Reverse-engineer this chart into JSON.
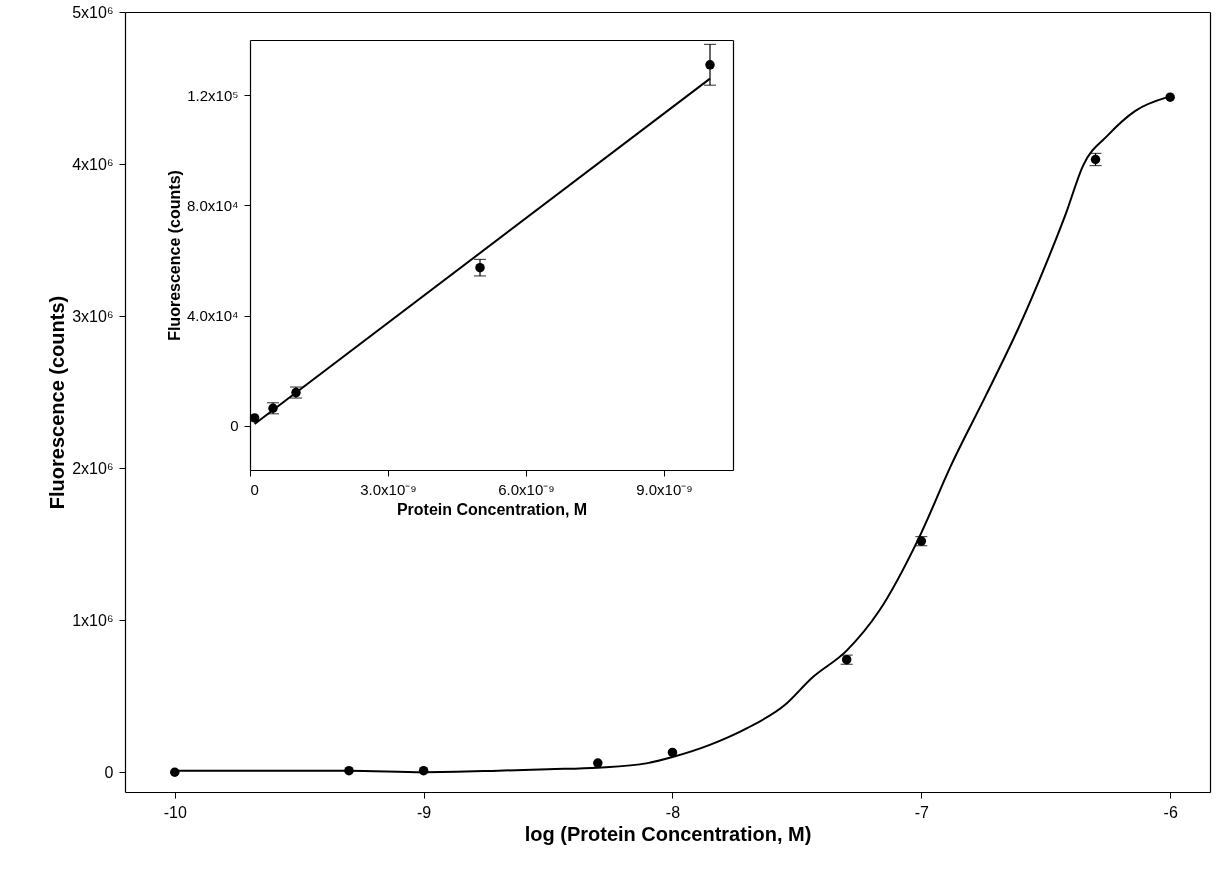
{
  "chart_data": [
    {
      "type": "scatter",
      "xlabel": "log (Protein Concentration, M)",
      "ylabel": "Fluorescence (counts)",
      "grid": false,
      "xlim": [
        -10.2,
        -5.84
      ],
      "xticks": [
        -10,
        -9,
        -8,
        -7,
        -6
      ],
      "ylim": [
        -130000,
        5000000
      ],
      "yticks": [
        0,
        {
          "value": 1000000,
          "label": "1x10⁶"
        },
        {
          "value": 2000000,
          "label": "2x10⁶"
        },
        {
          "value": 3000000,
          "label": "3x10⁶"
        },
        {
          "value": 4000000,
          "label": "4x10⁶"
        },
        {
          "value": 5000000,
          "label": "5x10⁶"
        }
      ],
      "series": [
        {
          "type": "line",
          "color": "#000000",
          "x": [
            -10,
            -9.5,
            -9.3,
            -9,
            -8.7,
            -8.5,
            -8.3,
            -8.1,
            -8,
            -7.85,
            -7.7,
            -7.55,
            -7.44,
            -7.3,
            -7.17,
            -7.01,
            -6.88,
            -6.74,
            -6.61,
            -6.52,
            -6.42,
            -6.35,
            -6.25,
            -6.14,
            -6.01
          ],
          "values": [
            10000,
            10000,
            10000,
            0,
            10000,
            20000,
            30000,
            60000,
            100000,
            180000,
            290000,
            440000,
            620000,
            800000,
            1060000,
            1540000,
            2020000,
            2480000,
            2920000,
            3260000,
            3670000,
            3990000,
            4190000,
            4350000,
            4440000
          ]
        },
        {
          "marker": "circle",
          "color": "#000000",
          "x": [
            -10,
            -9.3,
            -9,
            -8.3,
            -8,
            -7.3,
            -7,
            -6.3,
            -6
          ],
          "values": [
            0,
            10000,
            10000,
            60000,
            130000,
            740000,
            1520000,
            4030000,
            4440000
          ],
          "errors": [
            null,
            null,
            null,
            null,
            null,
            30000,
            30000,
            40000,
            null
          ]
        }
      ]
    },
    {
      "type": "scatter",
      "xlabel": "Protein Concentration, M",
      "ylabel": "Fluorescence (counts)",
      "grid": false,
      "xlim": [
        0,
        1.05e-08
      ],
      "xticks": [
        0,
        {
          "value": 3e-09,
          "label": "3.0x10⁻⁹"
        },
        {
          "value": 6e-09,
          "label": "6.0x10⁻⁹"
        },
        {
          "value": 9e-09,
          "label": "9.0x10⁻⁹"
        }
      ],
      "ylim": [
        -16000,
        140000
      ],
      "yticks": [
        0,
        {
          "value": 40000,
          "label": "4.0x10⁴"
        },
        {
          "value": 80000,
          "label": "8.0x10⁴"
        },
        {
          "value": 120000,
          "label": "1.2x10⁵"
        }
      ],
      "series": [
        {
          "type": "line",
          "color": "#000000",
          "x": [
            1e-10,
            1e-08
          ],
          "values": [
            700,
            126000
          ]
        },
        {
          "marker": "circle",
          "color": "#000000",
          "x": [
            1e-10,
            5e-10,
            1e-09,
            5e-09,
            1e-08
          ],
          "values": [
            2900,
            6400,
            12100,
            57400,
            131000
          ],
          "errors": [
            null,
            2000,
            2000,
            3000,
            7400
          ]
        }
      ]
    }
  ]
}
